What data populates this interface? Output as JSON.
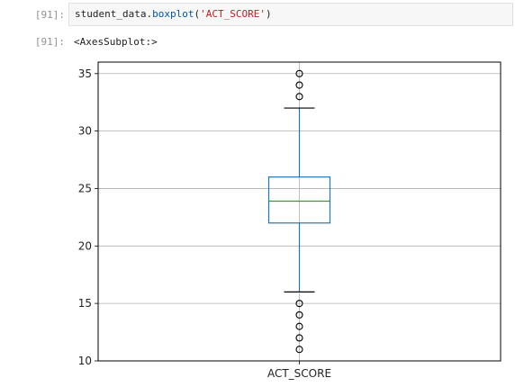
{
  "cell": {
    "in_prompt": "[91]:",
    "out_prompt": "[91]:",
    "code": {
      "var": "student_data",
      "dot": ".",
      "method": "boxplot",
      "open": "(",
      "arg": "'ACT_SCORE'",
      "close": ")"
    },
    "output_text": "<AxesSubplot:>"
  },
  "chart_data": {
    "type": "boxplot",
    "categories": [
      "ACT_SCORE"
    ],
    "ylim": [
      10,
      36
    ],
    "yticks": [
      10,
      15,
      20,
      25,
      30,
      35
    ],
    "grid": true,
    "box": {
      "whisker_low": 16,
      "q1": 22,
      "median": 23.9,
      "q3": 26,
      "whisker_high": 32
    },
    "outliers": [
      11,
      12,
      13,
      14,
      15,
      33,
      34,
      35
    ],
    "colors": {
      "box": "#1f77b4",
      "median": "#2ca02c",
      "grid": "#b0b0b0"
    }
  }
}
